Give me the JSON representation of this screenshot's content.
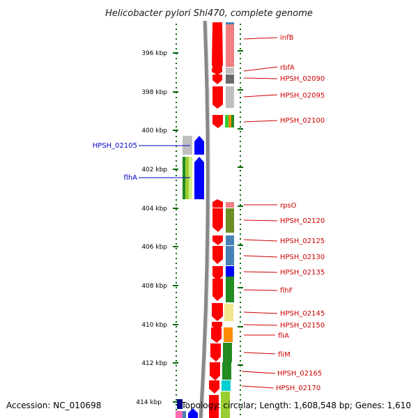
{
  "title": "Helicobacter pylori Shi470, complete genome",
  "footer": {
    "accession": "Accession: NC_010698",
    "topology": "Topology: circular; Length: 1,608,548 bp; Genes: 1,610"
  },
  "axis": {
    "ticks": [
      "396 kbp",
      "398 kbp",
      "400 kbp",
      "402 kbp",
      "404 kbp",
      "406 kbp",
      "408 kbp",
      "410 kbp",
      "412 kbp",
      "414 kbp"
    ]
  },
  "colors": {
    "forward_label": "#cc0000",
    "reverse_label": "#0000cc",
    "gene_red": "#ff0000",
    "gene_blue": "#0000ff",
    "backbone": "#888888",
    "tick_green": "#006600"
  },
  "genes_right": [
    {
      "label": "infB"
    },
    {
      "label": "rbfA"
    },
    {
      "label": "HPSH_02090"
    },
    {
      "label": "HPSH_02095"
    },
    {
      "label": "HPSH_02100"
    },
    {
      "label": "rpsO"
    },
    {
      "label": "HPSH_02120"
    },
    {
      "label": "HPSH_02125"
    },
    {
      "label": "HPSH_02130"
    },
    {
      "label": "HPSH_02135"
    },
    {
      "label": "flhF"
    },
    {
      "label": "HPSH_02145"
    },
    {
      "label": "HPSH_02150"
    },
    {
      "label": "fliA"
    },
    {
      "label": "fliM"
    },
    {
      "label": "HPSH_02165"
    },
    {
      "label": "HPSH_02170"
    }
  ],
  "genes_left": [
    {
      "label": "HPSH_02105"
    },
    {
      "label": "flhA"
    }
  ],
  "category_colors": [
    "#f08080",
    "#c0c0c0",
    "#696969",
    "#c0c0c0",
    "#ff8c00",
    "#6b8e23",
    "#4682b4",
    "#0000ff",
    "#228b22",
    "#f0e68c",
    "#ff8c00",
    "#00ced1",
    "#9acd32",
    "#00008b",
    "#ff69b4"
  ]
}
